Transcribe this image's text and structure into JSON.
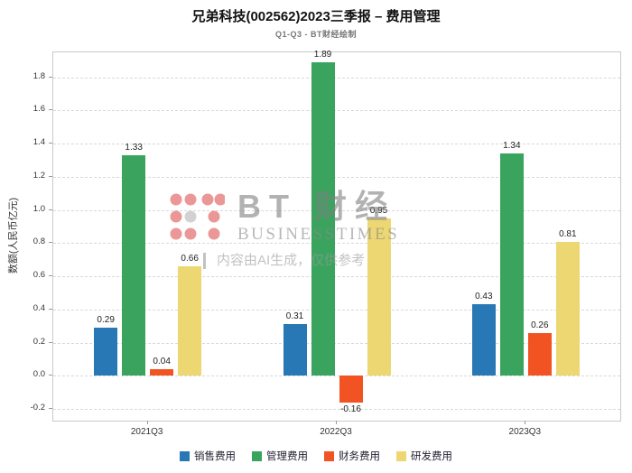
{
  "title": "兄弟科技(002562)2023三季报 – 费用管理",
  "subtitle": "Q1-Q3 - BT财经绘制",
  "watermark": {
    "brand_cn": "BT 财经",
    "brand_en": "BUSINESSTIMES",
    "disclaimer": "内容由AI生成，仅供参考"
  },
  "chart_data": {
    "type": "bar",
    "title": "兄弟科技(002562)2023三季报 – 费用管理",
    "subtitle": "Q1-Q3 - BT财经绘制",
    "categories": [
      "2021Q3",
      "2022Q3",
      "2023Q3"
    ],
    "series": [
      {
        "name": "销售费用",
        "color": "#2778b4",
        "values": [
          0.29,
          0.31,
          0.43
        ]
      },
      {
        "name": "管理费用",
        "color": "#3aa45f",
        "values": [
          1.33,
          1.89,
          1.34
        ]
      },
      {
        "name": "财务费用",
        "color": "#f25322",
        "values": [
          0.04,
          -0.16,
          0.26
        ]
      },
      {
        "name": "研发费用",
        "color": "#ecd773",
        "values": [
          0.66,
          0.95,
          0.81
        ]
      }
    ],
    "xlabel": "",
    "ylabel": "数额(人民币亿元)",
    "ylim": [
      -0.27,
      1.95
    ],
    "yticks": [
      -0.2,
      0.0,
      0.2,
      0.4,
      0.6,
      0.8,
      1.0,
      1.2,
      1.4,
      1.6,
      1.8
    ],
    "grid": true,
    "legend_position": "bottom"
  }
}
